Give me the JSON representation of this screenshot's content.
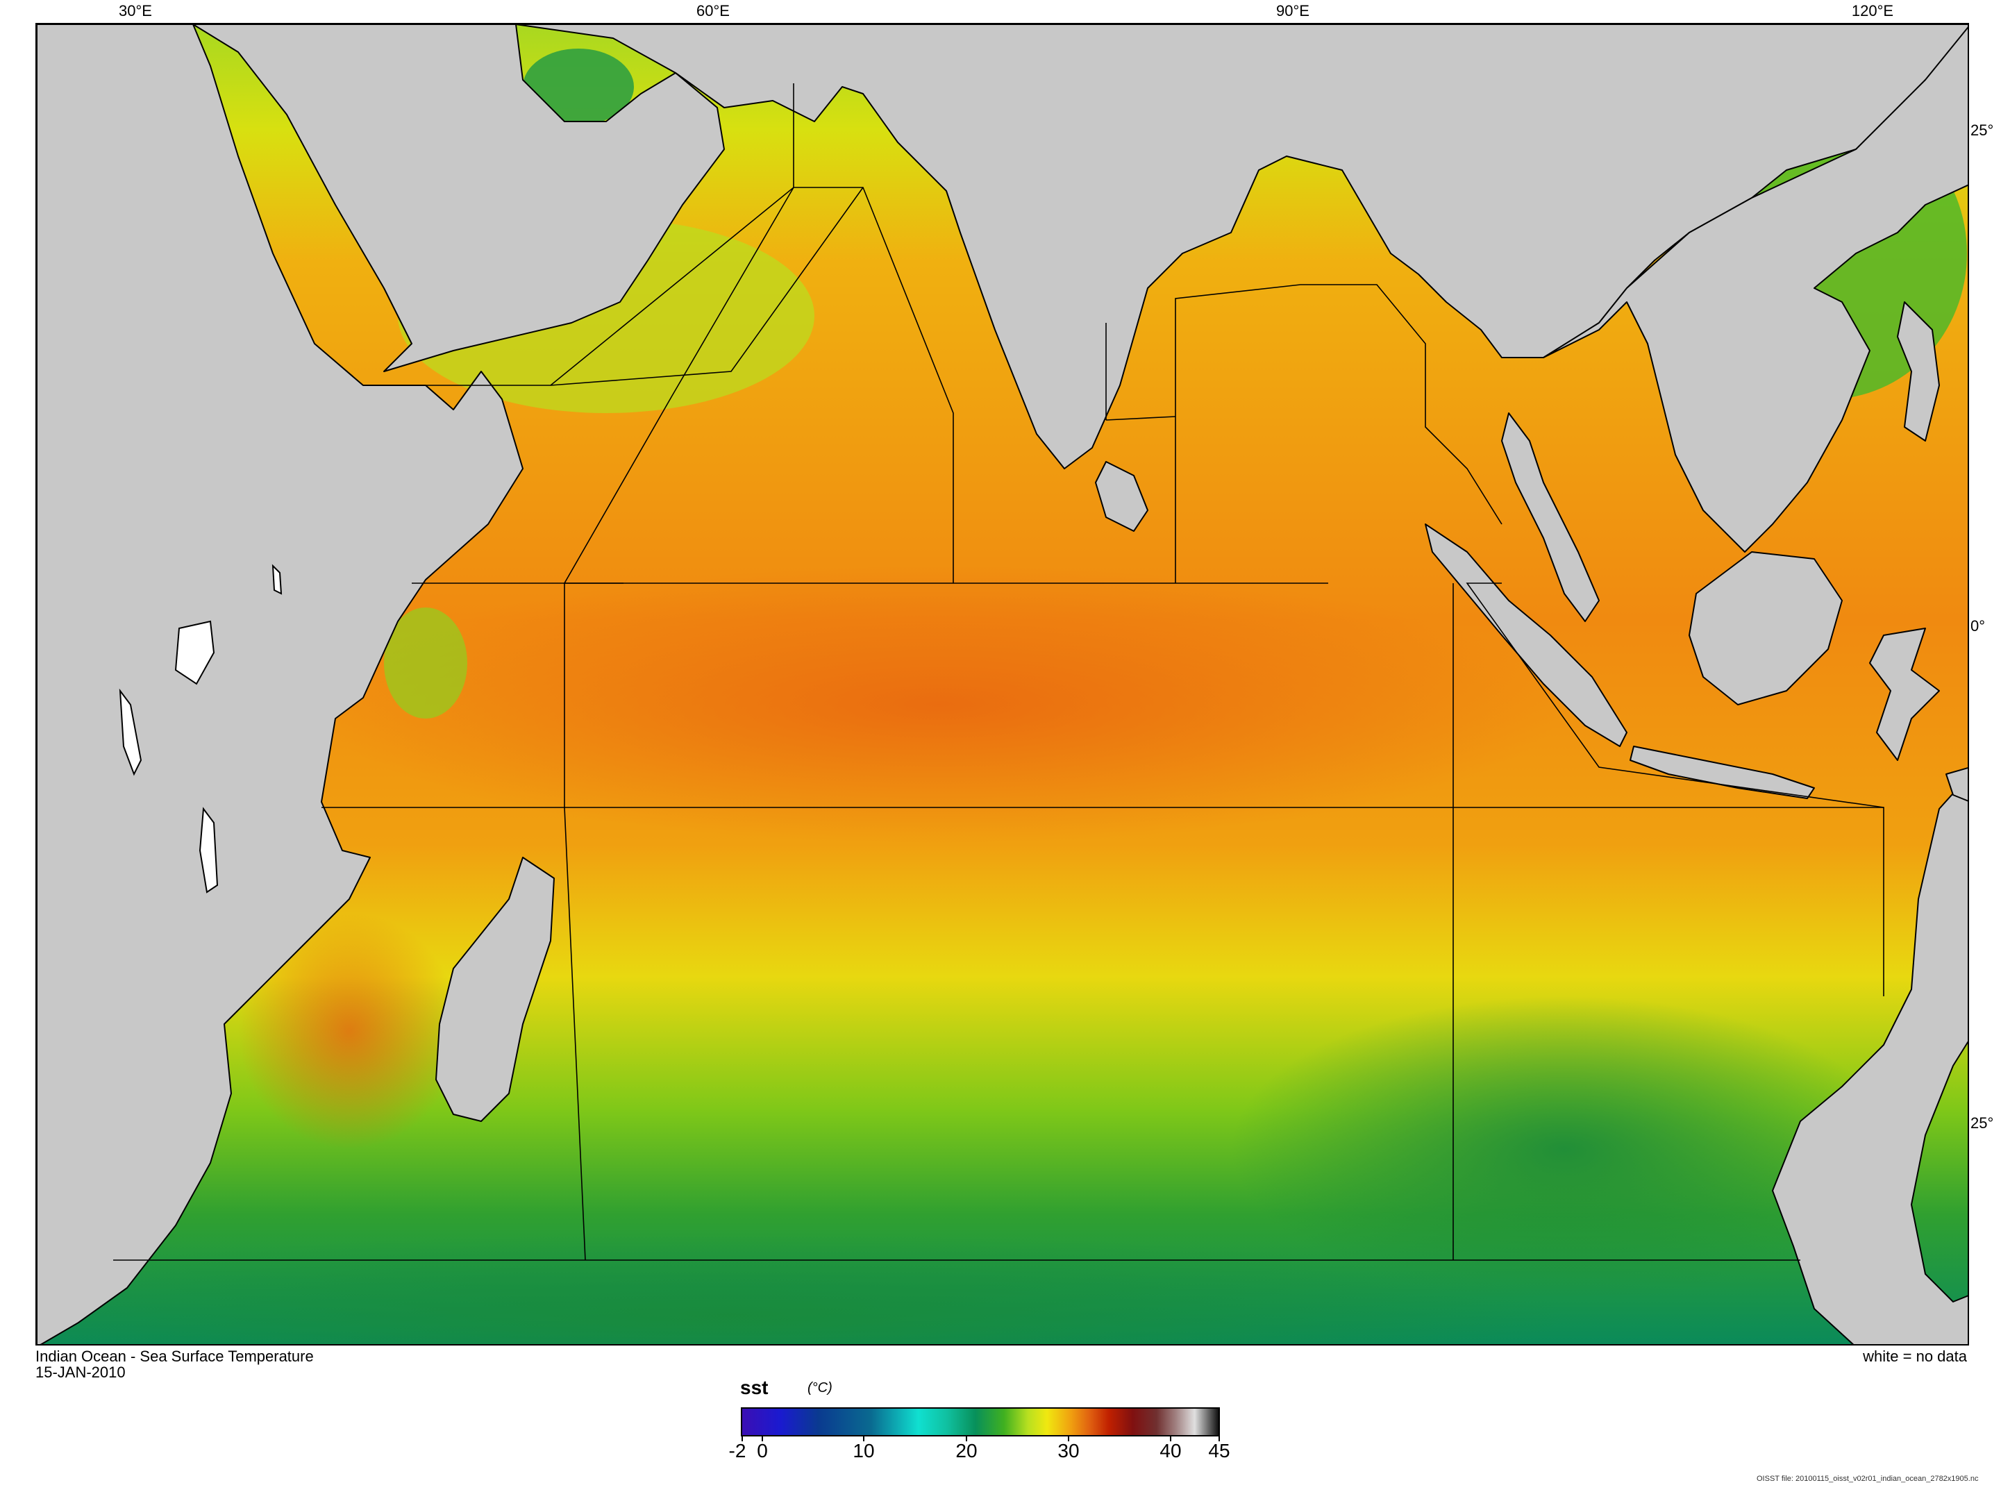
{
  "top_axis": {
    "labels": [
      "30°E",
      "60°E",
      "90°E",
      "120°E"
    ]
  },
  "right_axis": {
    "labels": [
      "25°",
      "0°",
      "25°"
    ]
  },
  "caption": {
    "title": "Indian Ocean - Sea Surface Temperature",
    "date": "15-JAN-2010",
    "no_data_note": "white = no data"
  },
  "colorbar": {
    "variable": "sst",
    "units": "(°C)",
    "tick_labels": [
      "-2",
      "0",
      "10",
      "20",
      "30",
      "40",
      "45"
    ],
    "range": [
      -2,
      45
    ]
  },
  "footnote": "OISST file: 20100115_oisst_v02r01_indian_ocean_2782x1905.nc",
  "colors": {
    "land": "#c8c8c8",
    "coastline": "#000000",
    "region_lines": "#000000",
    "no_data": "#ffffff",
    "sst_warm": "#f08a10",
    "sst_mid": "#d8e010",
    "sst_cool": "#40b020",
    "sst_cold": "#0a8a5a"
  }
}
